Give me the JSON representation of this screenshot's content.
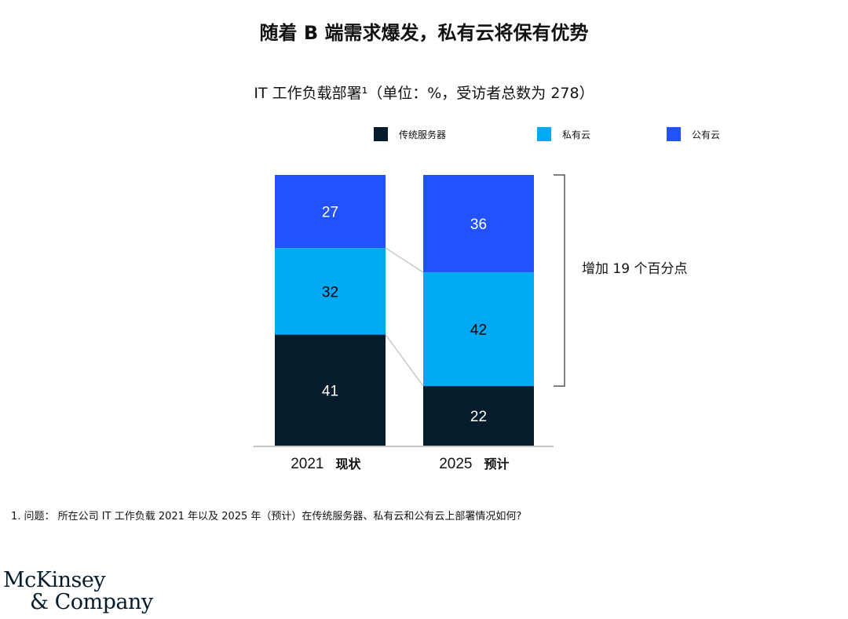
{
  "header": {
    "title": "随着 B 端需求爆发，私有云将保有优势",
    "subtitle": "IT 工作负载部署¹（单位：%，受访者总数为 278）"
  },
  "colors": {
    "traditional": "#051c2c",
    "private": "#00a9f4",
    "public": "#2251ff",
    "connector": "#c8c8c8",
    "axis": "#b0b0b0"
  },
  "chart_data": {
    "type": "bar",
    "stacked": true,
    "categories": [
      "2021 现状",
      "2025 预计"
    ],
    "category_years": [
      "2021",
      "2025"
    ],
    "category_notes": [
      "现状",
      "预计"
    ],
    "series": [
      {
        "name": "传统服务器",
        "values": [
          41,
          22
        ],
        "color": "#051c2c"
      },
      {
        "name": "私有云",
        "values": [
          32,
          42
        ],
        "color": "#00a9f4"
      },
      {
        "name": "公有云",
        "values": [
          27,
          36
        ],
        "color": "#2251ff"
      }
    ],
    "ylim": [
      0,
      100
    ],
    "legend_position": "top",
    "annotation": "增加 19 个百分点",
    "grid": false
  },
  "footnote": "1. 问题： 所在公司 IT 工作负载 2021 年以及 2025 年（预计）在传统服务器、私有云和公有云上部署情况如何?",
  "logo": {
    "line1": "McKinsey",
    "line2": "& Company"
  }
}
